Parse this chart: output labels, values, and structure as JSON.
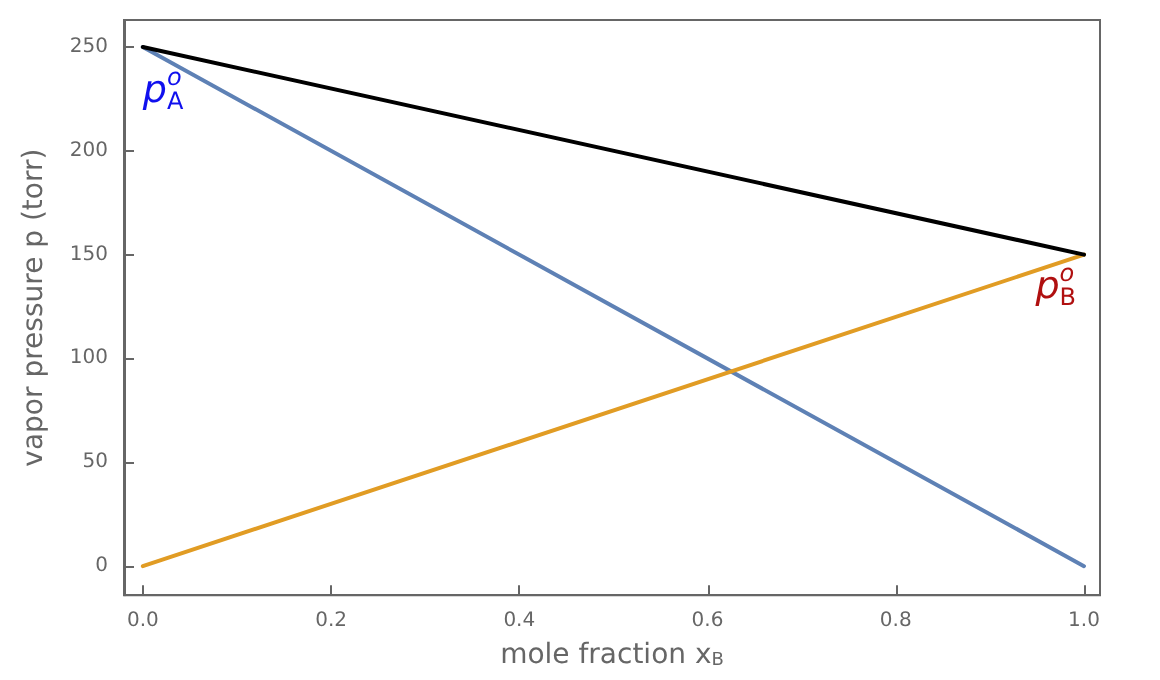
{
  "chart_data": {
    "type": "line",
    "xlabel": "mole fraction x$_{B}$",
    "ylabel": "vapor pressure p (torr)",
    "x": [
      0,
      1
    ],
    "series": [
      {
        "color": "#5e81b5",
        "values": [
          250,
          0
        ]
      },
      {
        "color": "#e19c24",
        "values": [
          0,
          150
        ]
      },
      {
        "color": "#000000",
        "values": [
          250,
          150
        ]
      }
    ],
    "xlim": [
      -0.02,
      1.017
    ],
    "ylim": [
      -14,
      263
    ],
    "xticks": [
      {
        "value": 0,
        "label": "0.0"
      },
      {
        "value": 0.2,
        "label": "0.2"
      },
      {
        "value": 0.4,
        "label": "0.4"
      },
      {
        "value": 0.6,
        "label": "0.6"
      },
      {
        "value": 0.8,
        "label": "0.8"
      },
      {
        "value": 1,
        "label": "1.0"
      }
    ],
    "yticks": [
      0,
      50,
      100,
      150,
      200,
      250
    ],
    "annotations": [
      {
        "text": "p$^{o}$$_{A}$",
        "x": 0.0,
        "y": 250
      },
      {
        "text": "p$^{o}$$_{B}$",
        "x": 1.0,
        "y": 150
      }
    ],
    "grid": false,
    "marker": "none",
    "line_style": "solid"
  }
}
